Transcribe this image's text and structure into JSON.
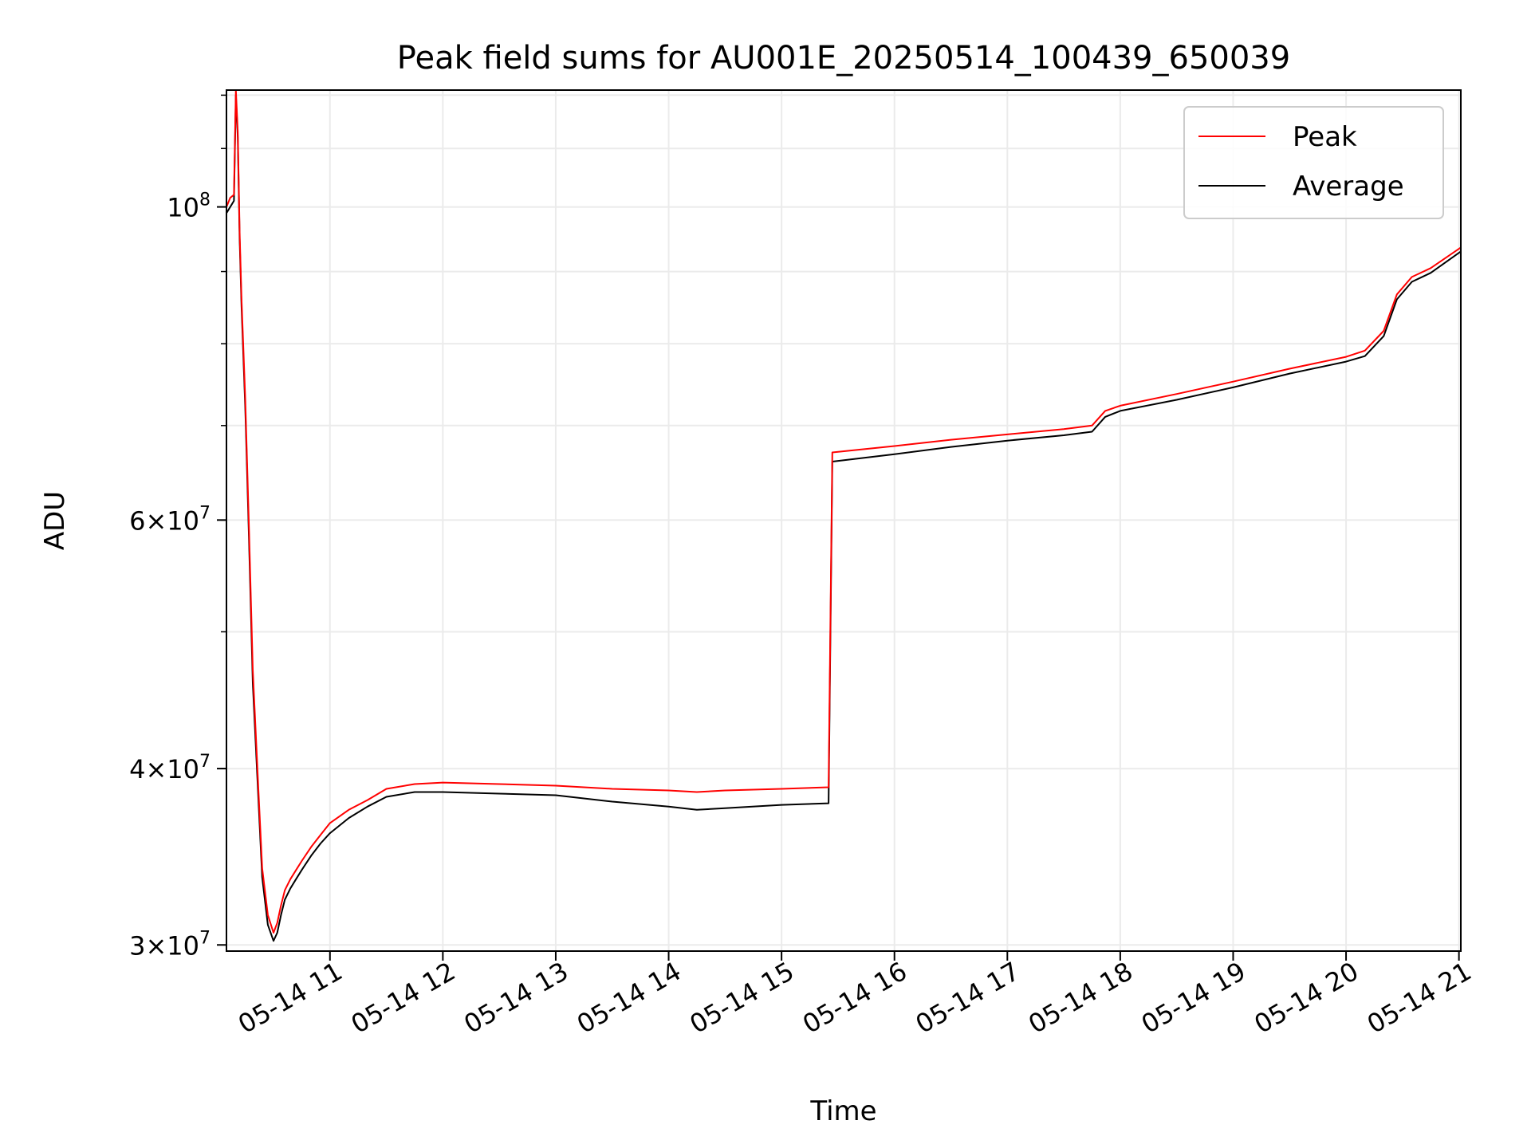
{
  "chart_data": {
    "type": "line",
    "title": "Peak field sums for AU001E_20250514_100439_650039",
    "xlabel": "Time",
    "ylabel": "ADU",
    "y_scale": "log",
    "ylim": [
      29700000,
      121000000
    ],
    "xlim": [
      "2025-05-14 10:05",
      "2025-05-14 21:01"
    ],
    "grid": true,
    "legend": {
      "position": "top-right",
      "entries": [
        "Peak",
        "Average"
      ]
    },
    "x_ticks": [
      "05-14 11",
      "05-14 12",
      "05-14 13",
      "05-14 14",
      "05-14 15",
      "05-14 16",
      "05-14 17",
      "05-14 18",
      "05-14 19",
      "05-14 20",
      "05-14 21"
    ],
    "y_ticks": [
      {
        "value": 30000000,
        "mant": "3",
        "exp": "7"
      },
      {
        "value": 40000000,
        "mant": "4",
        "exp": "7"
      },
      {
        "value": 60000000,
        "mant": "6",
        "exp": "7"
      },
      {
        "value": 100000000,
        "mant": "",
        "exp": "8"
      }
    ],
    "series": [
      {
        "name": "Average",
        "color": "#000000",
        "x": [
          "2025-05-14 10:05",
          "2025-05-14 10:07",
          "2025-05-14 10:09",
          "2025-05-14 10:10",
          "2025-05-14 10:11",
          "2025-05-14 10:12",
          "2025-05-14 10:13",
          "2025-05-14 10:15",
          "2025-05-14 10:17",
          "2025-05-14 10:19",
          "2025-05-14 10:22",
          "2025-05-14 10:24",
          "2025-05-14 10:27",
          "2025-05-14 10:30",
          "2025-05-14 10:32",
          "2025-05-14 10:34",
          "2025-05-14 10:36",
          "2025-05-14 10:39",
          "2025-05-14 10:42",
          "2025-05-14 10:45",
          "2025-05-14 10:50",
          "2025-05-14 10:55",
          "2025-05-14 11:00",
          "2025-05-14 11:10",
          "2025-05-14 11:20",
          "2025-05-14 11:30",
          "2025-05-14 11:45",
          "2025-05-14 12:00",
          "2025-05-14 12:30",
          "2025-05-14 13:00",
          "2025-05-14 13:30",
          "2025-05-14 14:00",
          "2025-05-14 14:15",
          "2025-05-14 14:30",
          "2025-05-14 15:00",
          "2025-05-14 15:25",
          "2025-05-14 15:27",
          "2025-05-14 16:00",
          "2025-05-14 16:30",
          "2025-05-14 17:00",
          "2025-05-14 17:30",
          "2025-05-14 17:45",
          "2025-05-14 17:52",
          "2025-05-14 18:00",
          "2025-05-14 18:30",
          "2025-05-14 19:00",
          "2025-05-14 19:30",
          "2025-05-14 20:00",
          "2025-05-14 20:10",
          "2025-05-14 20:20",
          "2025-05-14 20:27",
          "2025-05-14 20:35",
          "2025-05-14 20:45",
          "2025-05-14 21:01"
        ],
        "y": [
          99000000,
          100000000,
          101000000,
          120000000,
          112000000,
          95000000,
          85000000,
          72000000,
          58000000,
          46000000,
          38000000,
          33500000,
          31000000,
          30200000,
          30600000,
          31500000,
          32300000,
          32900000,
          33400000,
          33900000,
          34700000,
          35400000,
          36000000,
          36900000,
          37600000,
          38200000,
          38500000,
          38500000,
          38400000,
          38300000,
          37900000,
          37600000,
          37400000,
          37500000,
          37700000,
          37800000,
          66000000,
          66800000,
          67600000,
          68300000,
          68900000,
          69300000,
          71000000,
          71700000,
          73000000,
          74500000,
          76200000,
          77700000,
          78400000,
          81000000,
          86000000,
          88500000,
          89800000,
          93000000
        ]
      },
      {
        "name": "Peak",
        "color": "#ff0000",
        "x": [
          "2025-05-14 10:05",
          "2025-05-14 10:07",
          "2025-05-14 10:09",
          "2025-05-14 10:10",
          "2025-05-14 10:11",
          "2025-05-14 10:12",
          "2025-05-14 10:13",
          "2025-05-14 10:15",
          "2025-05-14 10:17",
          "2025-05-14 10:19",
          "2025-05-14 10:22",
          "2025-05-14 10:24",
          "2025-05-14 10:27",
          "2025-05-14 10:30",
          "2025-05-14 10:32",
          "2025-05-14 10:34",
          "2025-05-14 10:36",
          "2025-05-14 10:39",
          "2025-05-14 10:42",
          "2025-05-14 10:45",
          "2025-05-14 10:50",
          "2025-05-14 10:55",
          "2025-05-14 11:00",
          "2025-05-14 11:10",
          "2025-05-14 11:20",
          "2025-05-14 11:30",
          "2025-05-14 11:45",
          "2025-05-14 12:00",
          "2025-05-14 12:30",
          "2025-05-14 13:00",
          "2025-05-14 13:30",
          "2025-05-14 14:00",
          "2025-05-14 14:15",
          "2025-05-14 14:30",
          "2025-05-14 15:00",
          "2025-05-14 15:25",
          "2025-05-14 15:27",
          "2025-05-14 16:00",
          "2025-05-14 16:30",
          "2025-05-14 17:00",
          "2025-05-14 17:30",
          "2025-05-14 17:45",
          "2025-05-14 17:52",
          "2025-05-14 18:00",
          "2025-05-14 18:30",
          "2025-05-14 19:00",
          "2025-05-14 19:30",
          "2025-05-14 20:00",
          "2025-05-14 20:10",
          "2025-05-14 20:20",
          "2025-05-14 20:27",
          "2025-05-14 20:35",
          "2025-05-14 20:45",
          "2025-05-14 21:01"
        ],
        "y": [
          100000000,
          101500000,
          102000000,
          121000000,
          113000000,
          96000000,
          86000000,
          73000000,
          59000000,
          47000000,
          38600000,
          34000000,
          31500000,
          30600000,
          31100000,
          32000000,
          32800000,
          33400000,
          33900000,
          34400000,
          35200000,
          35900000,
          36600000,
          37400000,
          38000000,
          38700000,
          39000000,
          39100000,
          39000000,
          38900000,
          38700000,
          38600000,
          38500000,
          38600000,
          38700000,
          38800000,
          67000000,
          67700000,
          68400000,
          69000000,
          69600000,
          70000000,
          71700000,
          72300000,
          73700000,
          75200000,
          76800000,
          78300000,
          79100000,
          81700000,
          86700000,
          89200000,
          90500000,
          93600000
        ]
      }
    ]
  }
}
